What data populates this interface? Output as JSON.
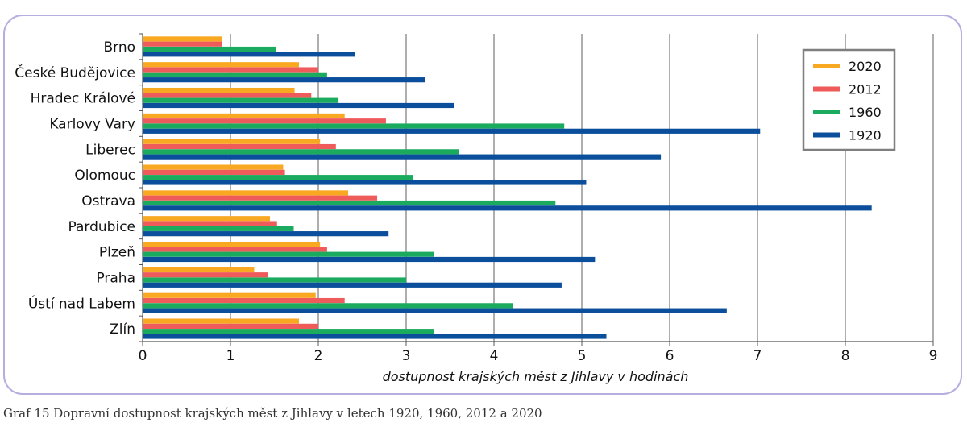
{
  "caption": "Graf 15 Dopravní dostupnost krajských měst z Jihlavy v letech 1920, 1960, 2012 a 2020",
  "chart_data": {
    "type": "bar",
    "orientation": "horizontal",
    "categories": [
      "Brno",
      "České Budějovice",
      "Hradec Králové",
      "Karlovy Vary",
      "Liberec",
      "Olomouc",
      "Ostrava",
      "Pardubice",
      "Plzeň",
      "Praha",
      "Ústí nad Labem",
      "Zlín"
    ],
    "series": [
      {
        "name": "2020",
        "color": "#f9a822",
        "values": [
          0.9,
          1.78,
          1.73,
          2.3,
          2.02,
          1.6,
          2.34,
          1.45,
          2.02,
          1.27,
          1.97,
          1.78
        ]
      },
      {
        "name": "2012",
        "color": "#ef5a5a",
        "values": [
          0.9,
          2.0,
          1.92,
          2.77,
          2.2,
          1.62,
          2.67,
          1.53,
          2.1,
          1.43,
          2.3,
          2.0
        ]
      },
      {
        "name": "1960",
        "color": "#1aab5e",
        "values": [
          1.52,
          2.1,
          2.23,
          4.8,
          3.6,
          3.08,
          4.7,
          1.72,
          3.32,
          3.0,
          4.22,
          3.32
        ]
      },
      {
        "name": "1920",
        "color": "#0b4f9c",
        "values": [
          2.42,
          3.22,
          3.55,
          7.03,
          5.9,
          5.05,
          8.3,
          2.8,
          5.15,
          4.77,
          6.65,
          5.28
        ]
      }
    ],
    "xlabel": "dostupnost krajských měst z Jihlavy v hodinách",
    "ylabel": "",
    "xlim": [
      0,
      9
    ],
    "xticks": [
      "0",
      "1",
      "2",
      "3",
      "4",
      "5",
      "6",
      "7",
      "8",
      "9"
    ],
    "grid": "vertical",
    "legend": {
      "placement": "top-right",
      "order": [
        "2020",
        "2012",
        "1960",
        "1920"
      ]
    }
  }
}
